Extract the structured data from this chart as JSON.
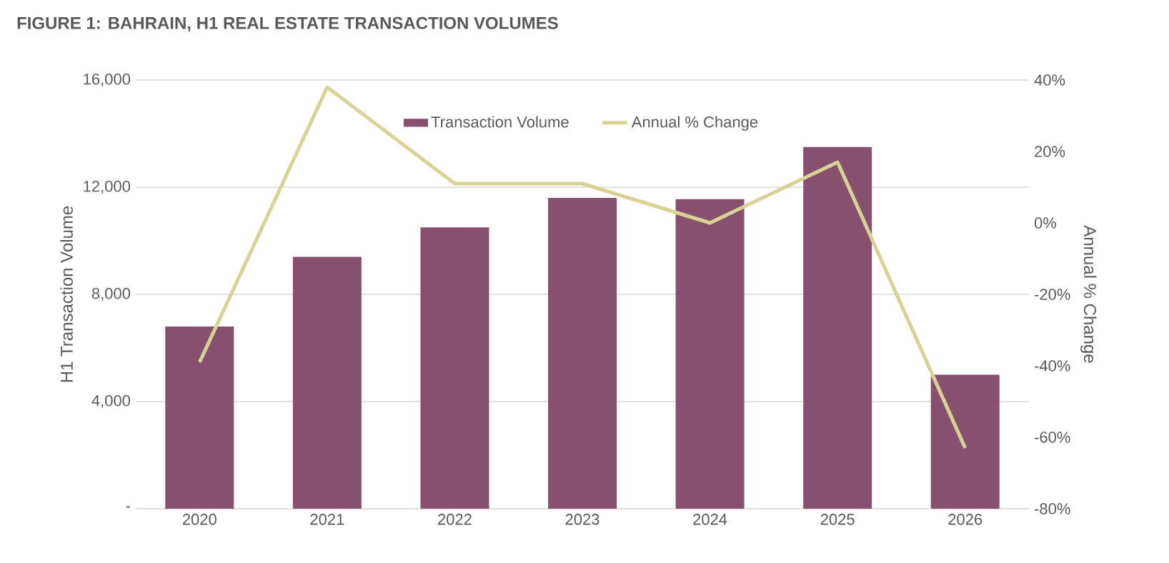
{
  "chart_data": {
    "type": "bar",
    "title": "FIGURE 1: BAHRAIN, H1 REAL ESTATE TRANSACTION VOLUMES",
    "ylabel": "H1 Transaction Volume",
    "y2label": "Annual % Change",
    "categories": [
      "2020",
      "2021",
      "2022",
      "2023",
      "2024",
      "2025",
      "2026"
    ],
    "series": [
      {
        "name": "Transaction Volume",
        "color": "#87506f",
        "values": [
          6800,
          9400,
          10500,
          11600,
          11550,
          13500,
          5000
        ]
      },
      {
        "name": "Annual % Change",
        "type": "line",
        "axis": "y2",
        "color": "#d8d394",
        "values": [
          -39,
          38,
          11,
          11,
          0,
          17,
          -63
        ]
      }
    ],
    "ylim": [
      0,
      16000
    ],
    "yticks": [
      {
        "value": 0,
        "label": "-"
      },
      {
        "value": 4000,
        "label": "4,000"
      },
      {
        "value": 8000,
        "label": "8,000"
      },
      {
        "value": 12000,
        "label": "12,000"
      },
      {
        "value": 16000,
        "label": "16,000"
      }
    ],
    "y2lim": [
      -80,
      40
    ],
    "y2ticks": [
      {
        "value": -80,
        "label": "-80%"
      },
      {
        "value": -60,
        "label": "-60%"
      },
      {
        "value": -40,
        "label": "-40%"
      },
      {
        "value": -20,
        "label": "-20%"
      },
      {
        "value": 0,
        "label": "0%"
      },
      {
        "value": 20,
        "label": "20%"
      },
      {
        "value": 40,
        "label": "40%"
      }
    ],
    "grid": "y",
    "legend": "top",
    "marker": "none",
    "line_style": "solid"
  }
}
